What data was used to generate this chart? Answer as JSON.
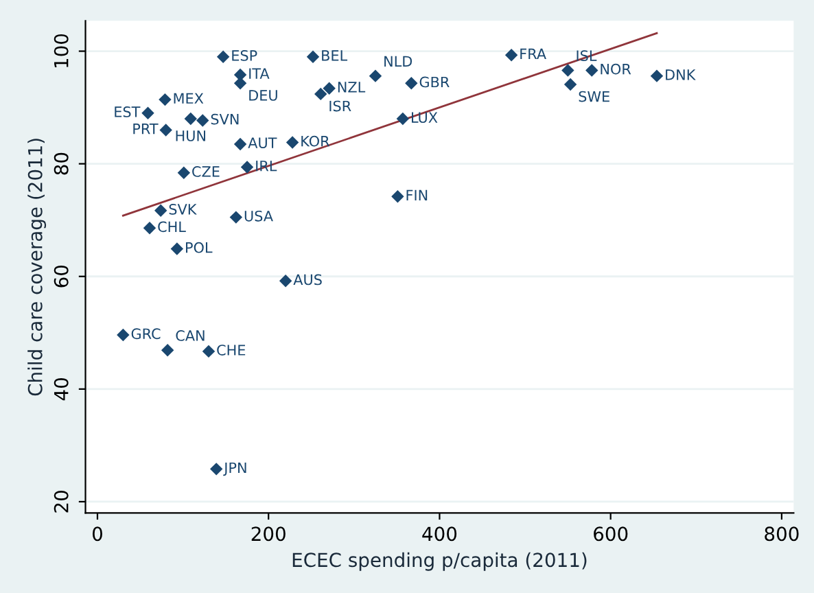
{
  "chart_data": {
    "type": "scatter",
    "xlabel": "ECEC spending p/capita (2011)",
    "ylabel": "Child care coverage (2011)",
    "xlim": [
      -14,
      814
    ],
    "ylim": [
      18,
      105.4
    ],
    "xticks": [
      0,
      200,
      400,
      600,
      800
    ],
    "yticks": [
      20,
      40,
      60,
      80,
      100
    ],
    "grid": "y",
    "marker": "diamond",
    "legend": false,
    "series": [
      {
        "color": "#1a476f",
        "x": [
          147,
          252,
          484,
          167,
          167,
          271,
          261,
          325,
          367,
          79,
          59,
          109,
          123,
          80,
          167,
          228,
          357,
          101,
          175,
          351,
          74,
          162,
          61,
          93,
          220,
          30,
          82,
          130,
          139,
          550,
          578,
          553,
          654
        ],
        "values": [
          99.0,
          99.0,
          99.3,
          95.8,
          94.3,
          93.4,
          92.4,
          95.6,
          94.3,
          91.4,
          89,
          88,
          87.7,
          86,
          83.5,
          83.8,
          88,
          78.4,
          79.4,
          74.2,
          71.7,
          70.5,
          68.6,
          64.9,
          59.2,
          49.6,
          46.9,
          46.7,
          25.8,
          96.6,
          96.6,
          94.1,
          95.6
        ]
      },
      {
        "type": "line",
        "color": "#90353b",
        "line_style": "solid",
        "marker": "none",
        "x": [
          30,
          654
        ],
        "values": [
          70.8,
          103.2
        ]
      }
    ],
    "annotations": [
      {
        "text": "ESP",
        "x": 147,
        "y": 99.0
      },
      {
        "text": "BEL",
        "x": 252,
        "y": 99.0
      },
      {
        "text": "FRA",
        "x": 484,
        "y": 99.3
      },
      {
        "text": "ITA",
        "x": 167,
        "y": 95.8
      },
      {
        "text": "DEU",
        "x": 167,
        "y": 94.3
      },
      {
        "text": "NZL",
        "x": 271,
        "y": 93.4
      },
      {
        "text": "ISR",
        "x": 261,
        "y": 92.4
      },
      {
        "text": "NLD",
        "x": 325,
        "y": 95.6
      },
      {
        "text": "GBR",
        "x": 367,
        "y": 94.3
      },
      {
        "text": "MEX",
        "x": 79,
        "y": 91.4
      },
      {
        "text": "EST",
        "x": 59,
        "y": 89
      },
      {
        "text": "HUN",
        "x": 109,
        "y": 88
      },
      {
        "text": "SVN",
        "x": 123,
        "y": 87.7
      },
      {
        "text": "PRT",
        "x": 80,
        "y": 86
      },
      {
        "text": "AUT",
        "x": 167,
        "y": 83.5
      },
      {
        "text": "KOR",
        "x": 228,
        "y": 83.8
      },
      {
        "text": "LUX",
        "x": 357,
        "y": 88
      },
      {
        "text": "CZE",
        "x": 101,
        "y": 78.4
      },
      {
        "text": "IRL",
        "x": 175,
        "y": 79.4
      },
      {
        "text": "FIN",
        "x": 351,
        "y": 74.2
      },
      {
        "text": "SVK",
        "x": 74,
        "y": 71.7
      },
      {
        "text": "USA",
        "x": 162,
        "y": 70.5
      },
      {
        "text": "CHL",
        "x": 61,
        "y": 68.6
      },
      {
        "text": "POL",
        "x": 93,
        "y": 64.9
      },
      {
        "text": "AUS",
        "x": 220,
        "y": 59.2
      },
      {
        "text": "GRC",
        "x": 30,
        "y": 49.6
      },
      {
        "text": "CAN",
        "x": 82,
        "y": 46.9
      },
      {
        "text": "CHE",
        "x": 130,
        "y": 46.7
      },
      {
        "text": "JPN",
        "x": 139,
        "y": 25.8
      },
      {
        "text": "ISL",
        "x": 550,
        "y": 96.6
      },
      {
        "text": "NOR",
        "x": 578,
        "y": 96.6
      },
      {
        "text": "SWE",
        "x": 553,
        "y": 94.1
      },
      {
        "text": "DNK",
        "x": 654,
        "y": 95.6
      }
    ]
  }
}
